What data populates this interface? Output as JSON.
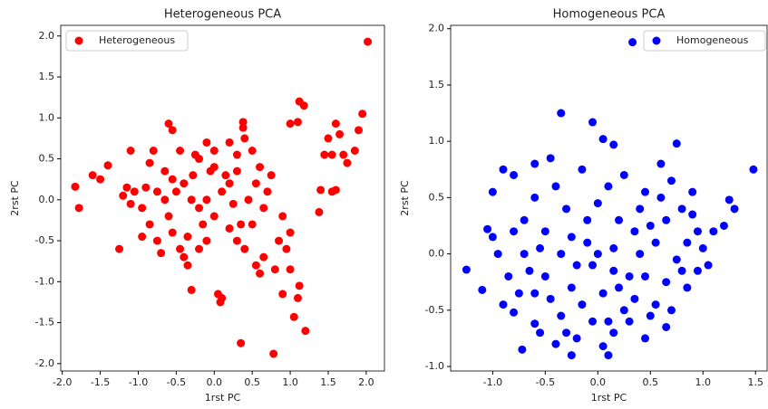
{
  "chart_data": [
    {
      "type": "scatter",
      "title": "Heterogeneous PCA",
      "x_label": "1rst PC",
      "y_label": "2rst PC",
      "legend": "upper left",
      "xlim": [
        -2.02,
        2.24
      ],
      "ylim": [
        -2.09,
        2.13
      ],
      "xticks": [
        {
          "value": -2,
          "label": "-2.0"
        },
        {
          "value": -1.5,
          "label": "-1.5"
        },
        {
          "value": -1,
          "label": "-1.0"
        },
        {
          "value": -0.5,
          "label": "-0.5"
        },
        {
          "value": 0,
          "label": "0.0"
        },
        {
          "value": 0.5,
          "label": "0.5"
        },
        {
          "value": 1,
          "label": "1.0"
        },
        {
          "value": 1.5,
          "label": "1.5"
        },
        {
          "value": 2,
          "label": "2.0"
        }
      ],
      "yticks": [
        {
          "value": -2,
          "label": "-2.0"
        },
        {
          "value": -1.5,
          "label": "-1.5"
        },
        {
          "value": -1,
          "label": "-1.0"
        },
        {
          "value": -0.5,
          "label": "-0.5"
        },
        {
          "value": 0,
          "label": "0.0"
        },
        {
          "value": 0.5,
          "label": "0.5"
        },
        {
          "value": 1,
          "label": "1.0"
        },
        {
          "value": 1.5,
          "label": "1.5"
        },
        {
          "value": 2,
          "label": "2.0"
        }
      ],
      "series": [
        {
          "name": "Heterogeneous",
          "color": "#ff0000",
          "x": [
            2.02,
            1.95,
            1.9,
            1.12,
            1.18,
            1.0,
            1.1,
            0.38,
            0.38,
            -0.6,
            -0.55,
            1.6,
            1.65,
            1.5,
            1.45,
            1.55,
            1.7,
            1.75,
            1.85,
            1.4,
            1.55,
            1.6,
            1.38,
            -1.83,
            -1.78,
            -1.6,
            -1.5,
            -1.4,
            -1.25,
            -1.1,
            -1.15,
            -1.1,
            -1.2,
            -1.05,
            -0.95,
            -0.9,
            -0.85,
            -0.8,
            -0.75,
            -0.7,
            -0.65,
            -0.6,
            -0.55,
            -0.5,
            -0.45,
            -0.4,
            -0.35,
            -0.3,
            -0.28,
            -0.2,
            -0.1,
            0.0,
            0.05,
            0.1,
            0.08,
            0.2,
            0.3,
            0.35,
            0.4,
            0.5,
            0.55,
            0.6,
            0.65,
            0.78,
            0.8,
            0.85,
            0.9,
            1.0,
            1.05,
            1.1,
            1.12,
            1.2,
            0.95,
            0.9,
            1.0,
            0.7,
            0.6,
            0.5,
            0.3,
            0.2,
            0.1,
            0.0,
            -0.1,
            -0.2,
            -0.3,
            -0.4,
            0.75,
            0.65,
            0.45,
            0.25,
            0.15,
            -0.05,
            -0.15,
            -0.25,
            -0.35,
            -0.45,
            -0.55,
            -0.65,
            -0.75,
            -0.85,
            -0.95,
            0.55,
            0.35,
            0.2,
            0.0,
            -0.1,
            -0.2,
            0.3,
            0.4
          ],
          "values": [
            1.93,
            1.05,
            0.85,
            1.2,
            1.15,
            0.93,
            0.95,
            0.95,
            0.88,
            0.93,
            0.85,
            0.93,
            0.8,
            0.75,
            0.55,
            0.55,
            0.55,
            0.45,
            0.6,
            0.12,
            0.1,
            0.12,
            -0.15,
            0.16,
            -0.1,
            0.3,
            0.25,
            0.42,
            -0.6,
            0.6,
            0.15,
            -0.05,
            0.05,
            0.1,
            -0.1,
            0.15,
            0.45,
            0.6,
            -0.5,
            -0.65,
            0.35,
            -0.2,
            -0.4,
            0.1,
            -0.6,
            -0.7,
            -0.8,
            -1.1,
            0.3,
            0.5,
            0.7,
            0.6,
            -1.15,
            -1.2,
            -1.25,
            -0.35,
            -0.5,
            -1.75,
            -0.6,
            -0.3,
            -0.8,
            -0.9,
            -0.7,
            -1.88,
            -0.85,
            -0.5,
            -1.15,
            -0.85,
            -1.43,
            -1.2,
            -1.05,
            -1.6,
            -0.6,
            -0.2,
            -0.4,
            0.1,
            0.4,
            0.6,
            0.35,
            0.7,
            0.1,
            -0.2,
            -0.5,
            -0.1,
            0.0,
            0.2,
            0.3,
            -0.1,
            0.0,
            -0.05,
            0.3,
            0.35,
            -0.3,
            0.55,
            -0.45,
            0.6,
            0.25,
            0.0,
            0.1,
            -0.3,
            -0.45,
            0.2,
            -0.3,
            0.2,
            0.4,
            0.0,
            -0.6,
            0.55,
            0.75
          ]
        }
      ]
    },
    {
      "type": "scatter",
      "title": "Homogeneous PCA",
      "x_label": "1rst PC",
      "y_label": "2rst PC",
      "legend": "upper right",
      "xlim": [
        -1.4,
        1.61
      ],
      "ylim": [
        -1.04,
        2.03
      ],
      "xticks": [
        {
          "value": -1,
          "label": "-1.0"
        },
        {
          "value": -0.5,
          "label": "-0.5"
        },
        {
          "value": 0,
          "label": "0.0"
        },
        {
          "value": 0.5,
          "label": "0.5"
        },
        {
          "value": 1,
          "label": "1.0"
        },
        {
          "value": 1.5,
          "label": "1.5"
        }
      ],
      "yticks": [
        {
          "value": -1,
          "label": "-1.0"
        },
        {
          "value": -0.5,
          "label": "-0.5"
        },
        {
          "value": 0,
          "label": "0.0"
        },
        {
          "value": 0.5,
          "label": "0.5"
        },
        {
          "value": 1,
          "label": "1.0"
        },
        {
          "value": 1.5,
          "label": "1.5"
        },
        {
          "value": 2,
          "label": "2.0"
        }
      ],
      "series": [
        {
          "name": "Homogeneous",
          "color": "#0000ff",
          "x": [
            0.33,
            1.48,
            -0.35,
            -0.05,
            0.05,
            0.15,
            0.75,
            -1.25,
            -1.1,
            -0.72,
            -0.6,
            -0.55,
            -0.25,
            -0.2,
            0.05,
            0.15,
            0.45,
            0.65,
            1.25,
            1.3,
            1.2,
            1.05,
            0.95,
            0.85,
            0.8,
            0.9,
            0.7,
            0.6,
            0.5,
            0.4,
            0.3,
            0.2,
            0.1,
            0.0,
            -0.1,
            -0.2,
            -0.3,
            -0.4,
            -0.5,
            -0.6,
            -0.7,
            -0.8,
            -0.9,
            -1.0,
            -1.05,
            -0.95,
            -0.85,
            -0.75,
            -0.65,
            -0.55,
            -0.45,
            -0.35,
            -0.25,
            -0.15,
            -0.05,
            0.05,
            0.15,
            0.25,
            0.35,
            0.45,
            0.55,
            0.65,
            0.75,
            0.85,
            0.95,
            1.0,
            0.6,
            0.45,
            0.25,
            -0.15,
            -0.45,
            -0.6,
            -0.9,
            -0.8,
            -0.4,
            0.1,
            0.3,
            0.5,
            0.7,
            0.35,
            0.15,
            -0.05,
            -0.25,
            -0.35,
            0.55,
            0.65,
            0.8,
            0.2,
            -0.1,
            -0.5,
            -0.7,
            -1.0,
            -0.8,
            1.1,
            0.9,
            0.4,
            0.0,
            0.1,
            -0.3,
            -0.6
          ],
          "values": [
            1.88,
            0.75,
            1.25,
            1.17,
            1.02,
            0.97,
            0.98,
            -0.14,
            -0.32,
            -0.85,
            -0.62,
            -0.7,
            -0.9,
            -0.75,
            -0.82,
            -0.7,
            -0.75,
            -0.65,
            0.48,
            0.4,
            0.25,
            -0.1,
            0.2,
            -0.3,
            0.4,
            0.55,
            0.65,
            0.5,
            0.25,
            0.0,
            -0.2,
            0.3,
            0.6,
            0.45,
            0.1,
            -0.1,
            0.4,
            0.6,
            0.2,
            0.5,
            0.3,
            0.7,
            0.75,
            0.55,
            0.22,
            0.0,
            -0.2,
            -0.35,
            -0.15,
            0.05,
            -0.4,
            -0.55,
            -0.3,
            -0.45,
            -0.6,
            -0.35,
            -0.15,
            -0.5,
            -0.4,
            -0.2,
            -0.45,
            -0.25,
            -0.05,
            0.1,
            -0.15,
            0.05,
            0.8,
            0.55,
            0.7,
            0.75,
            0.85,
            0.8,
            -0.45,
            -0.52,
            -0.8,
            -0.6,
            -0.6,
            -0.55,
            -0.5,
            0.2,
            0.05,
            -0.1,
            0.15,
            0.0,
            0.1,
            0.3,
            -0.15,
            -0.3,
            0.3,
            -0.2,
            0.0,
            0.15,
            0.2,
            0.2,
            0.35,
            0.4,
            0.0,
            -0.9,
            -0.7,
            -0.35
          ]
        }
      ]
    }
  ]
}
